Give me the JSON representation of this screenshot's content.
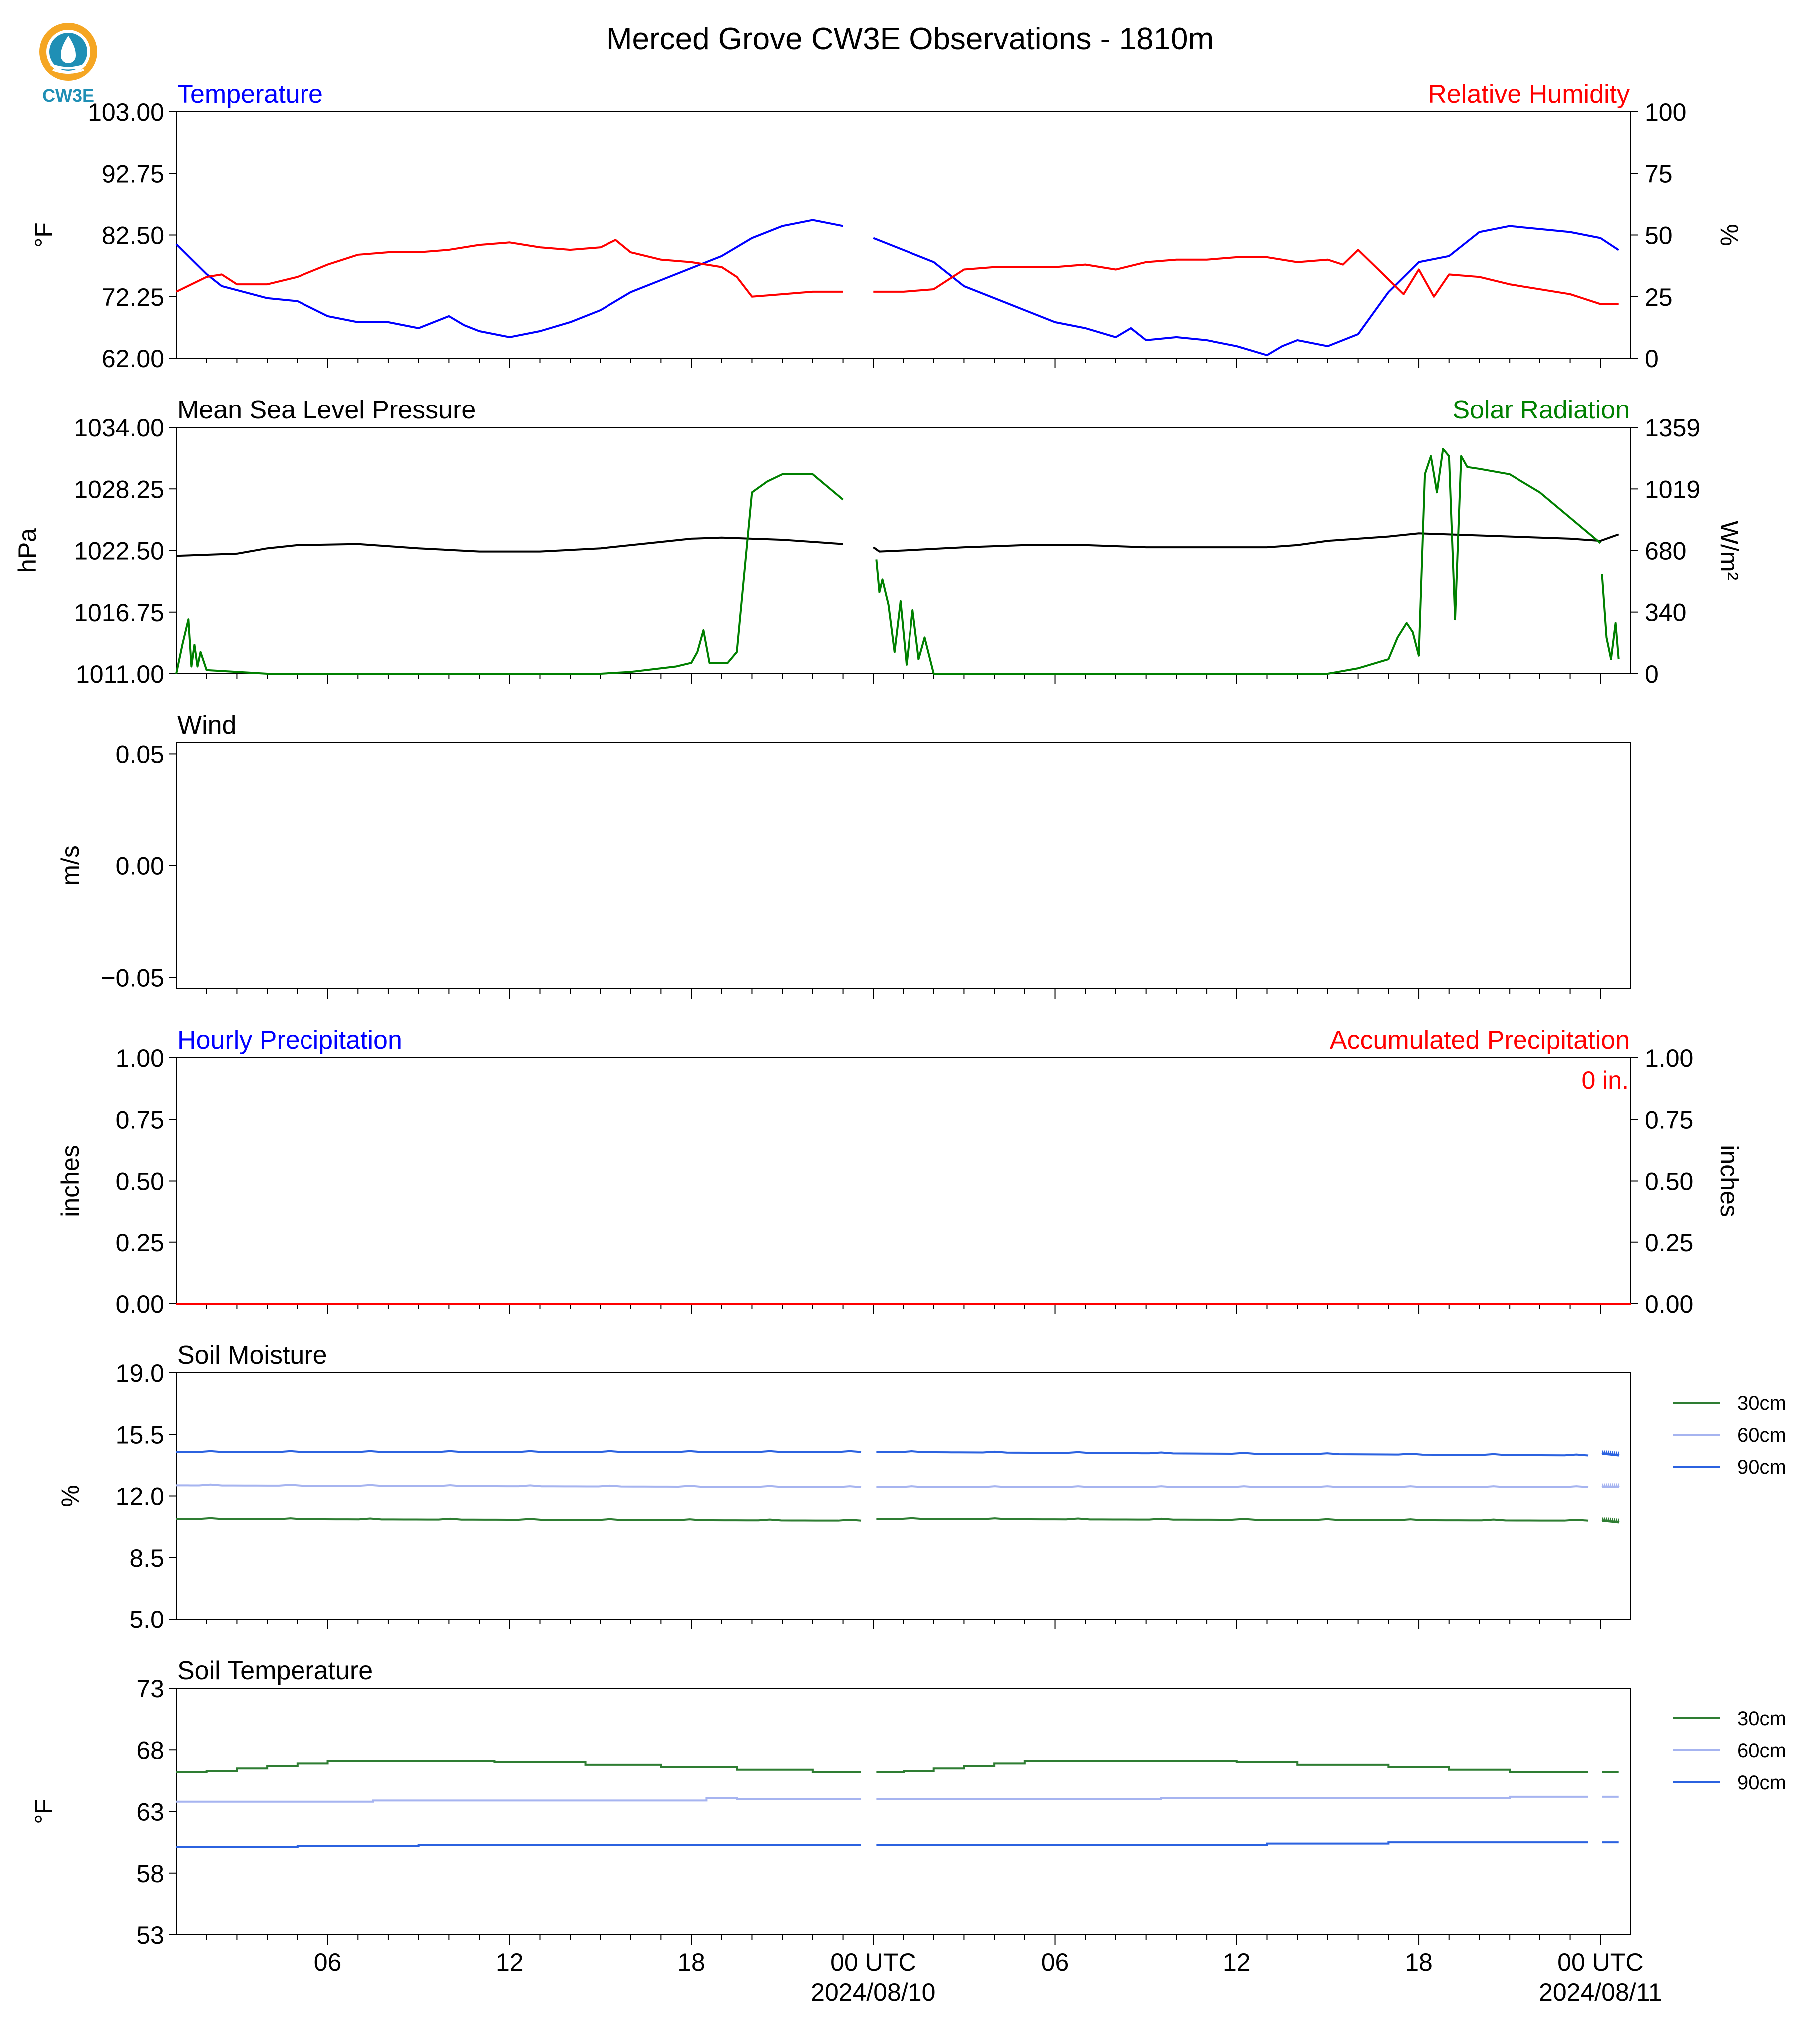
{
  "title": "Merced Grove CW3E Observations - 1810m",
  "logo": {
    "text": "CW3E"
  },
  "colors": {
    "blue": "#0000ff",
    "red": "#ff0000",
    "green": "#008000",
    "black": "#000000",
    "soil30": "#2e7d32",
    "soil60": "#a6b4f0",
    "soil90": "#2b62e0"
  },
  "x_axis": {
    "range_hours": [
      0,
      48
    ],
    "ticks": [
      {
        "hour": 5,
        "label": "06",
        "sub": ""
      },
      {
        "hour": 11,
        "label": "12",
        "sub": ""
      },
      {
        "hour": 17,
        "label": "18",
        "sub": ""
      },
      {
        "hour": 23,
        "label": "00 UTC",
        "sub": "2024/08/10"
      },
      {
        "hour": 29,
        "label": "06",
        "sub": ""
      },
      {
        "hour": 35,
        "label": "12",
        "sub": ""
      },
      {
        "hour": 41,
        "label": "18",
        "sub": ""
      },
      {
        "hour": 47,
        "label": "00 UTC",
        "sub": "2024/08/11"
      }
    ],
    "minor_step_hours": 1
  },
  "chart_data": [
    {
      "type": "line",
      "left_title": "Temperature",
      "right_title": "Relative Humidity",
      "ylabel": "°F",
      "ylabel_right": "%",
      "ylim": [
        62.0,
        103.0
      ],
      "yticks": [
        "62.00",
        "72.25",
        "82.50",
        "92.75",
        "103.00"
      ],
      "ylim_right": [
        0,
        100
      ],
      "yticks_right": [
        "0",
        "25",
        "50",
        "75",
        "100"
      ],
      "series": [
        {
          "axis": "left",
          "color_key": "blue",
          "x": [
            0,
            1,
            1.5,
            3,
            4,
            5,
            6,
            7,
            8,
            9,
            9.5,
            10,
            11,
            12,
            13,
            14,
            15,
            16,
            17,
            18,
            19,
            20,
            21,
            22,
            23,
            24,
            25,
            26,
            27,
            28,
            29,
            30,
            31,
            31.5,
            32,
            33,
            34,
            35,
            36,
            36.5,
            37,
            38,
            39,
            40,
            41,
            42,
            43,
            44,
            45,
            46,
            47,
            47.6
          ],
          "y": [
            81,
            76,
            74,
            72,
            71.5,
            69,
            68,
            68,
            67,
            69,
            67.5,
            66.5,
            65.5,
            66.5,
            68,
            70,
            73,
            75,
            77,
            79,
            82,
            84,
            85,
            84,
            82,
            80,
            78,
            74,
            72,
            70,
            68,
            67,
            65.5,
            67,
            65,
            65.5,
            65,
            64,
            62.5,
            64,
            65,
            64,
            66,
            73,
            78,
            79,
            83,
            84,
            83.5,
            83,
            82,
            80
          ]
        },
        {
          "axis": "right",
          "color_key": "red",
          "x": [
            0,
            1,
            1.5,
            2,
            3,
            4,
            5,
            6,
            7,
            8,
            9,
            10,
            11,
            12,
            13,
            14,
            14.5,
            15,
            16,
            17,
            18,
            18.5,
            19,
            20,
            21,
            22,
            23,
            24,
            25,
            26,
            27,
            28,
            29,
            30,
            31,
            32,
            33,
            34,
            35,
            36,
            37,
            38,
            38.5,
            39,
            40,
            40.5,
            41,
            41.5,
            42,
            43,
            44,
            45,
            46,
            47,
            47.6
          ],
          "y": [
            27,
            33,
            34,
            30,
            30,
            33,
            38,
            42,
            43,
            43,
            44,
            46,
            47,
            45,
            44,
            45,
            48,
            43,
            40,
            39,
            37,
            33,
            25,
            26,
            27,
            27,
            27,
            27,
            28,
            36,
            37,
            37,
            37,
            38,
            36,
            39,
            40,
            40,
            41,
            41,
            39,
            40,
            38,
            44,
            32,
            26,
            36,
            25,
            34,
            33,
            30,
            28,
            26,
            22,
            22
          ]
        },
        {
          "axis": "left",
          "color_key": "blue",
          "note": "gap handled by split",
          "x": [],
          "y": []
        }
      ]
    },
    {
      "type": "line",
      "left_title": "Mean Sea Level Pressure",
      "right_title": "Solar Radiation",
      "ylabel": "hPa",
      "ylabel_right": "W/m²",
      "ylim": [
        1011.0,
        1034.0
      ],
      "yticks": [
        "1011.00",
        "1016.75",
        "1022.50",
        "1028.25",
        "1034.00"
      ],
      "ylim_right": [
        0,
        1359
      ],
      "yticks_right": [
        "0",
        "340",
        "680",
        "1019",
        "1359"
      ],
      "series": [
        {
          "axis": "left",
          "color_key": "black",
          "x": [
            0,
            2,
            3,
            4,
            6,
            8,
            10,
            12,
            14,
            16,
            17,
            18,
            20,
            22,
            23,
            23.2,
            24,
            26,
            28,
            30,
            32,
            34,
            36,
            37,
            38,
            40,
            41,
            42,
            44,
            46,
            47,
            47.6
          ],
          "y": [
            1022.0,
            1022.2,
            1022.7,
            1023.0,
            1023.1,
            1022.7,
            1022.4,
            1022.4,
            1022.7,
            1023.3,
            1023.6,
            1023.7,
            1023.5,
            1023.1,
            1022.8,
            1022.4,
            1022.5,
            1022.8,
            1023.0,
            1023.0,
            1022.8,
            1022.8,
            1022.8,
            1023.0,
            1023.4,
            1023.8,
            1024.1,
            1024.0,
            1023.8,
            1023.6,
            1023.4,
            1024.0
          ]
        },
        {
          "axis": "right",
          "color_key": "green",
          "x": [
            0,
            0.2,
            0.4,
            0.5,
            0.6,
            0.7,
            0.8,
            1,
            3,
            4,
            10,
            14,
            15,
            16,
            16.5,
            17,
            17.2,
            17.4,
            17.6,
            18,
            18.2,
            18.5,
            19,
            19.5,
            20,
            21,
            22,
            23
          ],
          "y": [
            0,
            160,
            300,
            40,
            160,
            40,
            120,
            20,
            0,
            0,
            0,
            0,
            10,
            30,
            40,
            60,
            120,
            240,
            60,
            60,
            60,
            120,
            1000,
            1060,
            1100,
            1100,
            960,
            700
          ]
        },
        {
          "axis": "right",
          "color_key": "green",
          "x": [
            23.1,
            23.2,
            23.3,
            23.5,
            23.7,
            23.9,
            24.1,
            24.3,
            24.5,
            24.7,
            25,
            26,
            28,
            34,
            38,
            39,
            40,
            40.3,
            40.6,
            40.8,
            41,
            41.2,
            41.4,
            41.6,
            41.8,
            42,
            42.2,
            42.4,
            42.6,
            43,
            44,
            45,
            46,
            47
          ],
          "y": [
            630,
            450,
            520,
            380,
            120,
            400,
            50,
            350,
            80,
            200,
            0,
            0,
            0,
            0,
            0,
            30,
            80,
            200,
            280,
            230,
            100,
            1100,
            1200,
            1000,
            1240,
            1200,
            300,
            1200,
            1140,
            1130,
            1100,
            1000,
            860,
            720
          ]
        },
        {
          "axis": "right",
          "color_key": "green",
          "x": [
            47.05,
            47.2,
            47.35,
            47.5,
            47.6
          ],
          "y": [
            550,
            200,
            80,
            280,
            80
          ]
        }
      ]
    },
    {
      "type": "line",
      "left_title": "Wind",
      "right_title": "",
      "ylabel": "m/s",
      "ylabel_right": "",
      "ylim": [
        -0.055,
        0.055
      ],
      "yticks": [
        "−0.05",
        "0.00",
        "0.05"
      ],
      "series": []
    },
    {
      "type": "line",
      "left_title": "Hourly Precipitation",
      "right_title": "Accumulated Precipitation",
      "ylabel": "inches",
      "ylabel_right": "inches",
      "ylim": [
        0.0,
        1.0
      ],
      "yticks": [
        "0.00",
        "0.25",
        "0.50",
        "0.75",
        "1.00"
      ],
      "ylim_right": [
        0.0,
        1.0
      ],
      "yticks_right": [
        "0.00",
        "0.25",
        "0.50",
        "0.75",
        "1.00"
      ],
      "annotation": "0 in.",
      "series": [
        {
          "axis": "left",
          "color_key": "red",
          "x": [
            0,
            48
          ],
          "y": [
            0,
            0
          ]
        }
      ]
    },
    {
      "type": "line",
      "left_title": "Soil Moisture",
      "right_title": "",
      "ylabel": "%",
      "ylabel_right": "",
      "ylim": [
        5.0,
        19.0
      ],
      "yticks": [
        "5.0",
        "8.5",
        "12.0",
        "15.5",
        "19.0"
      ],
      "legend": [
        "30cm",
        "60cm",
        "90cm"
      ],
      "series": [
        {
          "name": "30cm",
          "color_key": "soil30",
          "segments": [
            [
              0,
              22.6,
              10.7,
              10.6
            ],
            [
              23.1,
              46.6,
              10.7,
              10.6
            ],
            [
              47.05,
              47.6,
              10.6,
              10.5
            ]
          ]
        },
        {
          "name": "60cm",
          "color_key": "soil60",
          "segments": [
            [
              0,
              22.6,
              12.6,
              12.5
            ],
            [
              23.1,
              46.6,
              12.5,
              12.5
            ],
            [
              47.05,
              47.6,
              12.5,
              12.5
            ]
          ]
        },
        {
          "name": "90cm",
          "color_key": "soil90",
          "segments": [
            [
              0,
              22.6,
              14.5,
              14.5
            ],
            [
              23.1,
              46.6,
              14.5,
              14.3
            ],
            [
              47.05,
              47.6,
              14.4,
              14.3
            ]
          ]
        }
      ]
    },
    {
      "type": "line",
      "left_title": "Soil Temperature",
      "right_title": "",
      "ylabel": "°F",
      "ylabel_right": "",
      "ylim": [
        53,
        73
      ],
      "yticks": [
        "53",
        "58",
        "63",
        "68",
        "73"
      ],
      "legend": [
        "30cm",
        "60cm",
        "90cm"
      ],
      "series": [
        {
          "name": "30cm",
          "color_key": "soil30",
          "steps": [
            [
              0,
              66.2
            ],
            [
              1,
              66.3
            ],
            [
              2,
              66.5
            ],
            [
              3,
              66.7
            ],
            [
              4,
              66.9
            ],
            [
              5,
              67.1
            ],
            [
              10.5,
              67.0
            ],
            [
              13.5,
              66.8
            ],
            [
              16,
              66.6
            ],
            [
              18.5,
              66.4
            ],
            [
              21,
              66.2
            ],
            [
              22.6,
              66.2
            ]
          ],
          "steps2": [
            [
              23.1,
              66.2
            ],
            [
              24,
              66.3
            ],
            [
              25,
              66.5
            ],
            [
              26,
              66.7
            ],
            [
              27,
              66.9
            ],
            [
              28,
              67.1
            ],
            [
              35,
              67.0
            ],
            [
              37,
              66.8
            ],
            [
              40,
              66.6
            ],
            [
              42,
              66.4
            ],
            [
              44,
              66.2
            ],
            [
              46.6,
              66.2
            ]
          ],
          "steps3": [
            [
              47.05,
              66.2
            ],
            [
              47.6,
              66.2
            ]
          ]
        },
        {
          "name": "60cm",
          "color_key": "soil60",
          "steps": [
            [
              0,
              63.8
            ],
            [
              5.5,
              63.8
            ],
            [
              6.5,
              63.9
            ],
            [
              7.5,
              63.9
            ],
            [
              17.5,
              64.1
            ],
            [
              18.5,
              64.0
            ],
            [
              22.6,
              64.0
            ]
          ],
          "steps2": [
            [
              23.1,
              64.0
            ],
            [
              32.5,
              64.1
            ],
            [
              44,
              64.2
            ],
            [
              46.6,
              64.2
            ]
          ],
          "steps3": [
            [
              47.05,
              64.2
            ],
            [
              47.6,
              64.2
            ]
          ]
        },
        {
          "name": "90cm",
          "color_key": "soil90",
          "steps": [
            [
              0,
              60.1
            ],
            [
              4,
              60.2
            ],
            [
              6,
              60.2
            ],
            [
              8,
              60.3
            ],
            [
              22.6,
              60.3
            ]
          ],
          "steps2": [
            [
              23.1,
              60.3
            ],
            [
              36,
              60.4
            ],
            [
              40,
              60.5
            ],
            [
              46.6,
              60.5
            ]
          ],
          "steps3": [
            [
              47.05,
              60.5
            ],
            [
              47.6,
              60.5
            ]
          ]
        }
      ]
    }
  ]
}
